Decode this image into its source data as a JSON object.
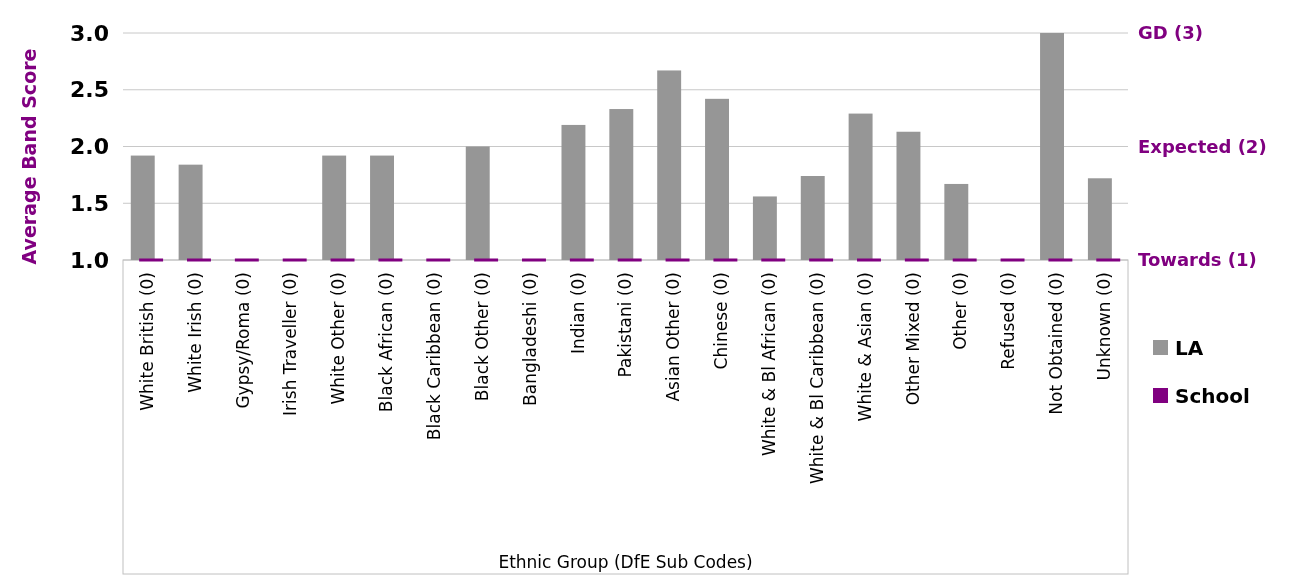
{
  "chart_data": {
    "type": "bar",
    "ylabel": "Average Band Score",
    "xlabel": "Ethnic Group (DfE Sub Codes)",
    "categories": [
      "White British (0)",
      "White Irish (0)",
      "Gypsy/Roma (0)",
      "Irish Traveller (0)",
      "White Other (0)",
      "Black African (0)",
      "Black Caribbean (0)",
      "Black Other (0)",
      "Bangladeshi (0)",
      "Indian (0)",
      "Pakistani (0)",
      "Asian Other (0)",
      "Chinese (0)",
      "White & Bl African (0)",
      "White & Bl Caribbean (0)",
      "White & Asian (0)",
      "Other Mixed (0)",
      "Other  (0)",
      "Refused  (0)",
      "Not Obtained (0)",
      "Unknown (0)"
    ],
    "series": [
      {
        "name": "LA",
        "color": "#969696",
        "values": [
          1.92,
          1.84,
          null,
          null,
          1.92,
          1.92,
          null,
          2.0,
          null,
          2.19,
          2.33,
          2.67,
          2.42,
          1.56,
          1.74,
          2.29,
          2.13,
          1.67,
          null,
          3.0,
          1.72
        ]
      },
      {
        "name": "School",
        "color": "#800080",
        "values": [
          1,
          1,
          1,
          1,
          1,
          1,
          1,
          1,
          1,
          1,
          1,
          1,
          1,
          1,
          1,
          1,
          1,
          1,
          1,
          1,
          1
        ]
      }
    ],
    "ylim": [
      1,
      3
    ],
    "yticks": [
      {
        "value": 1,
        "label": "1.0"
      },
      {
        "value": 1.5,
        "label": "1.5"
      },
      {
        "value": 2,
        "label": "2.0"
      },
      {
        "value": 2.5,
        "label": "2.5"
      },
      {
        "value": 3,
        "label": "3.0"
      }
    ],
    "y2lim": [
      1,
      3
    ],
    "y2ticks": [
      {
        "value": 1,
        "label": "Towards (1)"
      },
      {
        "value": 2,
        "label": "Expected (2)"
      },
      {
        "value": 3,
        "label": "GD (3)"
      }
    ],
    "grid": "y",
    "legend": "right"
  }
}
